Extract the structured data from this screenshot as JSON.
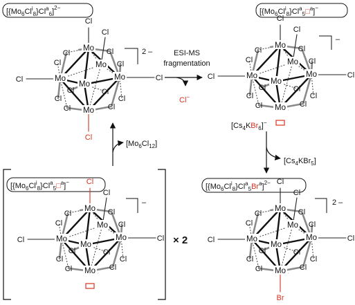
{
  "colors": {
    "accent_red": "#d8321f",
    "ink": "#111111",
    "grey_bond": "#8a8a8a"
  },
  "labels": {
    "anion_parent": "[{Mo6Cli8}Cla6]2−",
    "anion_fragment": "[{Mo6Cli8}Cla5□a]−",
    "anion_dimer_unit": "[{Mo6Cli8}Cla5□a]−",
    "anion_product": "[{Mo6Cli8}Cla5Bra]2−"
  },
  "label_parts": {
    "parent": [
      "[{Mo",
      "6",
      "Cl",
      "i",
      "8",
      "}Cl",
      "a",
      "6",
      "]",
      "2−"
    ],
    "fragment": [
      "[{Mo",
      "6",
      "Cl",
      "i",
      "8",
      "}Cl",
      "a",
      "5",
      "□",
      "a",
      "]",
      "−"
    ],
    "dimer": [
      "[{Mo",
      "6",
      "Cl",
      "i",
      "8",
      "}Cl",
      "a",
      "5",
      "□",
      "a",
      "]",
      "−"
    ],
    "product": [
      "[{Mo",
      "6",
      "Cl",
      "i",
      "8",
      "}Cl",
      "a",
      "5",
      "Br",
      "a",
      "]",
      "2−"
    ]
  },
  "charges": {
    "parent": "2 –",
    "fragment": "–",
    "dimer": "–",
    "product": "2 –"
  },
  "reactions": {
    "esi_line1": "ESI-MS",
    "esi_line2": "fragmentation",
    "chloride_loss": "Cl−",
    "mocl12_parts": [
      "[Mo",
      "6",
      "Cl",
      "12",
      "]"
    ],
    "reagent_parts": [
      "[Cs",
      "4",
      "K",
      "Br",
      "6",
      "]",
      "−"
    ],
    "byproduct_parts": [
      "[Cs",
      "4",
      "KBr",
      "5",
      "]"
    ],
    "multiplier": "× 2"
  },
  "atoms": {
    "mo": "Mo",
    "cl": "Cl",
    "br": "Br"
  }
}
